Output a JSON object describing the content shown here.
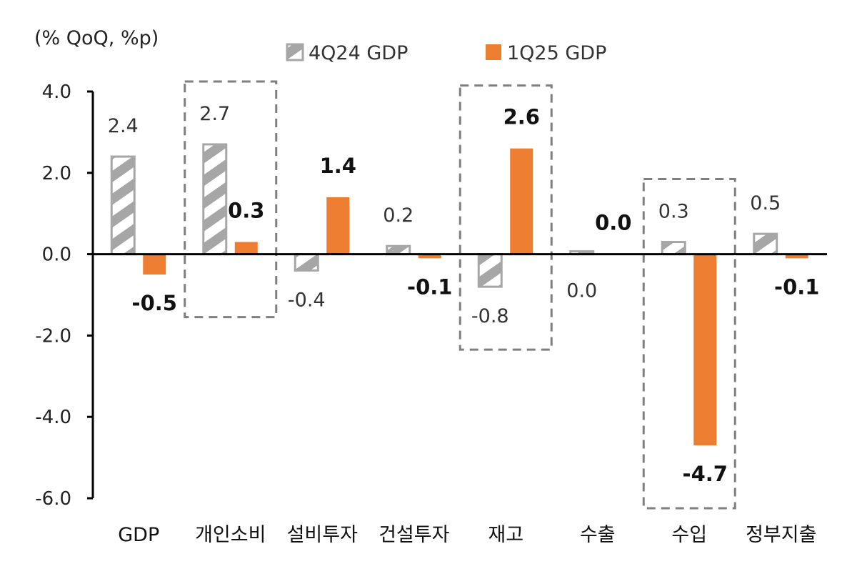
{
  "chart_data": {
    "type": "bar",
    "unit_label": "(% QoQ, %p)",
    "categories": [
      "GDP",
      "개인소비",
      "설비투자",
      "건설투자",
      "재고",
      "수출",
      "수입",
      "정부지출"
    ],
    "series": [
      {
        "name": "4Q24 GDP",
        "style": "hatched",
        "color": "#a6a6a6",
        "values": [
          2.4,
          2.7,
          -0.4,
          0.2,
          -0.8,
          0.0,
          0.3,
          0.5
        ],
        "labels": [
          "2.4",
          "2.7",
          "-0.4",
          "0.2",
          "-0.8",
          "0.0",
          "0.3",
          "0.5"
        ]
      },
      {
        "name": "1Q25 GDP",
        "style": "solid",
        "color": "#ed7d31",
        "values": [
          -0.5,
          0.3,
          1.4,
          -0.1,
          2.6,
          0.0,
          -4.7,
          -0.1
        ],
        "labels": [
          "-0.5",
          "0.3",
          "1.4",
          "-0.1",
          "2.6",
          "0.0",
          "-4.7",
          "-0.1"
        ]
      }
    ],
    "y_ticks": [
      "4.0",
      "2.0",
      "0.0",
      "-2.0",
      "-4.0",
      "-6.0"
    ],
    "ylim": [
      -6,
      4
    ],
    "highlighted_categories": [
      "개인소비",
      "재고",
      "수입"
    ],
    "legend_position": "top"
  }
}
